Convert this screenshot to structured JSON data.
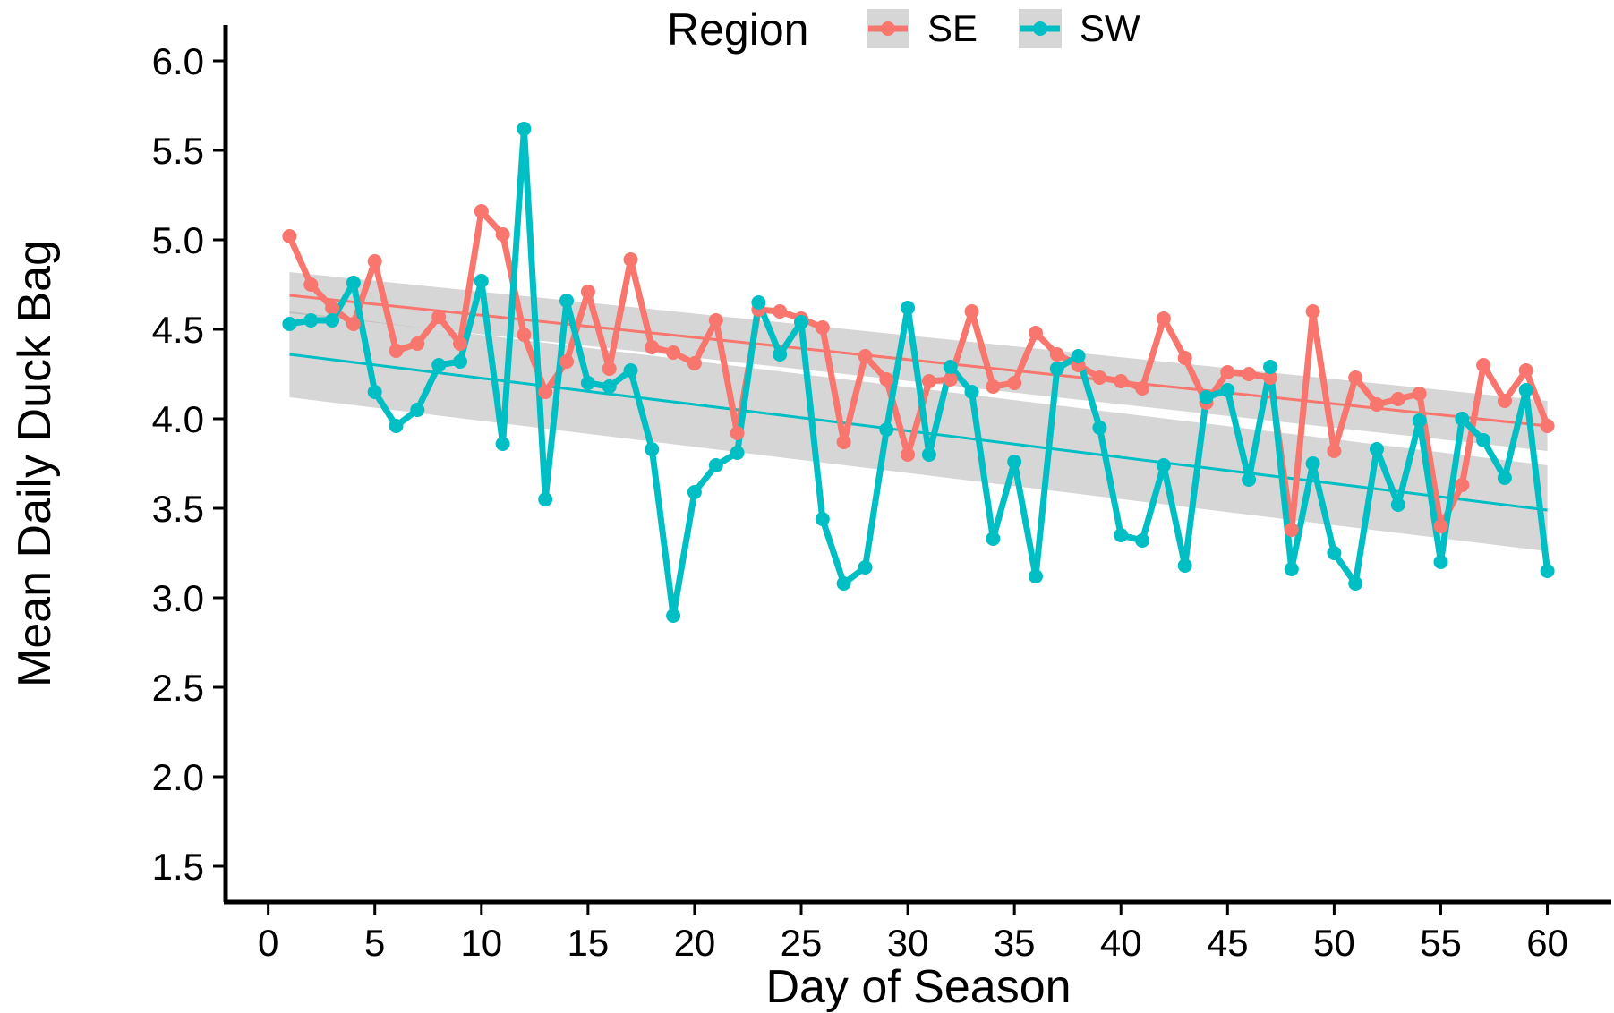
{
  "chart_data": {
    "type": "line",
    "xlabel": "Day of Season",
    "ylabel": "Mean Daily Duck Bag",
    "xlim": [
      -2,
      63
    ],
    "ylim": [
      1.3,
      6.2
    ],
    "xticks": [
      0,
      5,
      10,
      15,
      20,
      25,
      30,
      35,
      40,
      45,
      50,
      55,
      60
    ],
    "yticks": [
      "1.5",
      "2.0",
      "2.5",
      "3.0",
      "3.5",
      "4.0",
      "4.5",
      "5.0",
      "5.5",
      "6.0"
    ],
    "grid": false,
    "legend": {
      "title": "Region",
      "position": "top",
      "entries": [
        "SE",
        "SW"
      ]
    },
    "x": [
      1,
      2,
      3,
      4,
      5,
      6,
      7,
      8,
      9,
      10,
      11,
      12,
      13,
      14,
      15,
      16,
      17,
      18,
      19,
      20,
      21,
      22,
      23,
      24,
      25,
      26,
      27,
      28,
      29,
      30,
      31,
      32,
      33,
      34,
      35,
      36,
      37,
      38,
      39,
      40,
      41,
      42,
      43,
      44,
      45,
      46,
      47,
      48,
      49,
      50,
      51,
      52,
      53,
      54,
      55,
      56,
      57,
      58,
      59,
      60
    ],
    "series": [
      {
        "name": "SE",
        "color": "#F8766D",
        "values": [
          5.02,
          4.75,
          4.62,
          4.53,
          4.88,
          4.38,
          4.42,
          4.57,
          4.42,
          5.16,
          5.03,
          4.47,
          4.15,
          4.32,
          4.71,
          4.28,
          4.89,
          4.4,
          4.37,
          4.31,
          4.55,
          3.92,
          4.61,
          4.6,
          4.56,
          4.51,
          3.87,
          4.35,
          4.22,
          3.8,
          4.21,
          4.22,
          4.6,
          4.18,
          4.2,
          4.48,
          4.36,
          4.3,
          4.23,
          4.21,
          4.17,
          4.56,
          4.34,
          4.09,
          4.26,
          4.25,
          4.23,
          3.38,
          4.6,
          3.82,
          4.23,
          4.08,
          4.11,
          4.14,
          3.4,
          3.63,
          4.3,
          4.1,
          4.27,
          3.96
        ],
        "trend": {
          "x": [
            1,
            60
          ],
          "y": [
            4.69,
            3.96
          ]
        },
        "ci_band": {
          "lower": [
            4.59,
            3.82
          ],
          "upper": [
            4.82,
            4.1
          ]
        }
      },
      {
        "name": "SW",
        "color": "#00BFC4",
        "values": [
          4.53,
          4.55,
          4.55,
          4.76,
          4.15,
          3.96,
          4.05,
          4.3,
          4.32,
          4.77,
          3.86,
          5.62,
          3.55,
          4.66,
          4.2,
          4.18,
          4.27,
          3.83,
          2.9,
          3.59,
          3.74,
          3.81,
          4.65,
          4.36,
          4.54,
          3.44,
          3.08,
          3.17,
          3.94,
          4.62,
          3.8,
          4.29,
          4.15,
          3.33,
          3.76,
          3.12,
          4.28,
          4.35,
          3.95,
          3.35,
          3.32,
          3.74,
          3.18,
          4.12,
          4.16,
          3.66,
          4.29,
          3.16,
          3.75,
          3.25,
          3.08,
          3.83,
          3.52,
          3.99,
          3.2,
          4.0,
          3.88,
          3.67,
          4.16,
          3.15
        ],
        "trend": {
          "x": [
            1,
            60
          ],
          "y": [
            4.36,
            3.49
          ]
        },
        "ci_band": {
          "lower": [
            4.12,
            3.26
          ],
          "upper": [
            4.6,
            3.74
          ]
        }
      }
    ]
  }
}
